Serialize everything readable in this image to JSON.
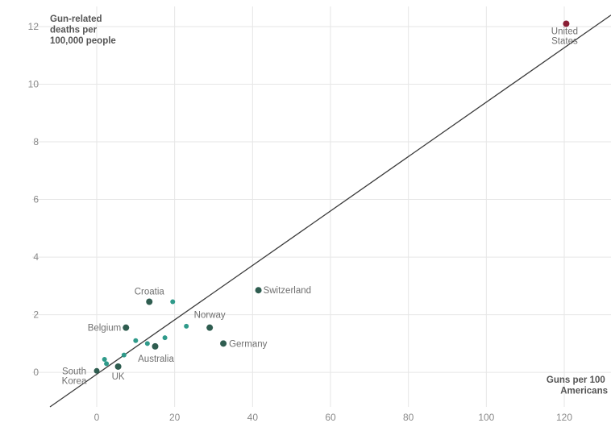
{
  "chart_data": {
    "type": "scatter",
    "title": "",
    "ylabel_lines": [
      "Gun-related",
      "deaths per",
      "100,000 people"
    ],
    "xlabel_lines": [
      "Guns per 100",
      "Americans"
    ],
    "xlim": [
      -12,
      132
    ],
    "ylim": [
      -1.2,
      12.7
    ],
    "x_ticks": [
      0,
      20,
      40,
      60,
      80,
      100,
      120
    ],
    "y_ticks": [
      0,
      2,
      4,
      6,
      8,
      10,
      12
    ],
    "grid": true,
    "trendline": {
      "x": [
        -12,
        132
      ],
      "y": [
        -1.2,
        12.4
      ]
    },
    "colors": {
      "labeled": "#2f5d50",
      "unlabeled": "#2f9a8a",
      "highlight": "#8a1f35",
      "trend": "#3a3a3a"
    },
    "points": [
      {
        "x": 120.5,
        "y": 12.1,
        "label_lines": [
          "United",
          "States"
        ],
        "color": "highlight",
        "r": 4
      },
      {
        "x": 41.5,
        "y": 2.85,
        "label_lines": [
          "Switzerland"
        ],
        "color": "labeled",
        "r": 4
      },
      {
        "x": 13.5,
        "y": 2.45,
        "label_lines": [
          "Croatia"
        ],
        "color": "labeled",
        "r": 4
      },
      {
        "x": 29,
        "y": 1.55,
        "label_lines": [
          "Norway"
        ],
        "color": "labeled",
        "r": 4
      },
      {
        "x": 32.5,
        "y": 1.0,
        "label_lines": [
          "Germany"
        ],
        "color": "labeled",
        "r": 4
      },
      {
        "x": 7.5,
        "y": 1.55,
        "label_lines": [
          "Belgium"
        ],
        "color": "labeled",
        "r": 4
      },
      {
        "x": 15,
        "y": 0.9,
        "label_lines": [
          "Australia"
        ],
        "color": "labeled",
        "r": 4
      },
      {
        "x": 5.5,
        "y": 0.2,
        "label_lines": [
          "UK"
        ],
        "color": "labeled",
        "r": 4
      },
      {
        "x": 0,
        "y": 0.05,
        "label_lines": [
          "South",
          "Korea"
        ],
        "color": "labeled",
        "r": 3.5
      },
      {
        "x": 19.5,
        "y": 2.45,
        "label_lines": [],
        "color": "unlabeled",
        "r": 3
      },
      {
        "x": 23,
        "y": 1.6,
        "label_lines": [],
        "color": "unlabeled",
        "r": 3
      },
      {
        "x": 17.5,
        "y": 1.2,
        "label_lines": [],
        "color": "unlabeled",
        "r": 3
      },
      {
        "x": 10,
        "y": 1.1,
        "label_lines": [],
        "color": "unlabeled",
        "r": 3
      },
      {
        "x": 13,
        "y": 1.0,
        "label_lines": [],
        "color": "unlabeled",
        "r": 3
      },
      {
        "x": 7,
        "y": 0.6,
        "label_lines": [],
        "color": "unlabeled",
        "r": 3
      },
      {
        "x": 2,
        "y": 0.45,
        "label_lines": [],
        "color": "unlabeled",
        "r": 3
      },
      {
        "x": 2.5,
        "y": 0.3,
        "label_lines": [],
        "color": "unlabeled",
        "r": 3
      }
    ]
  }
}
